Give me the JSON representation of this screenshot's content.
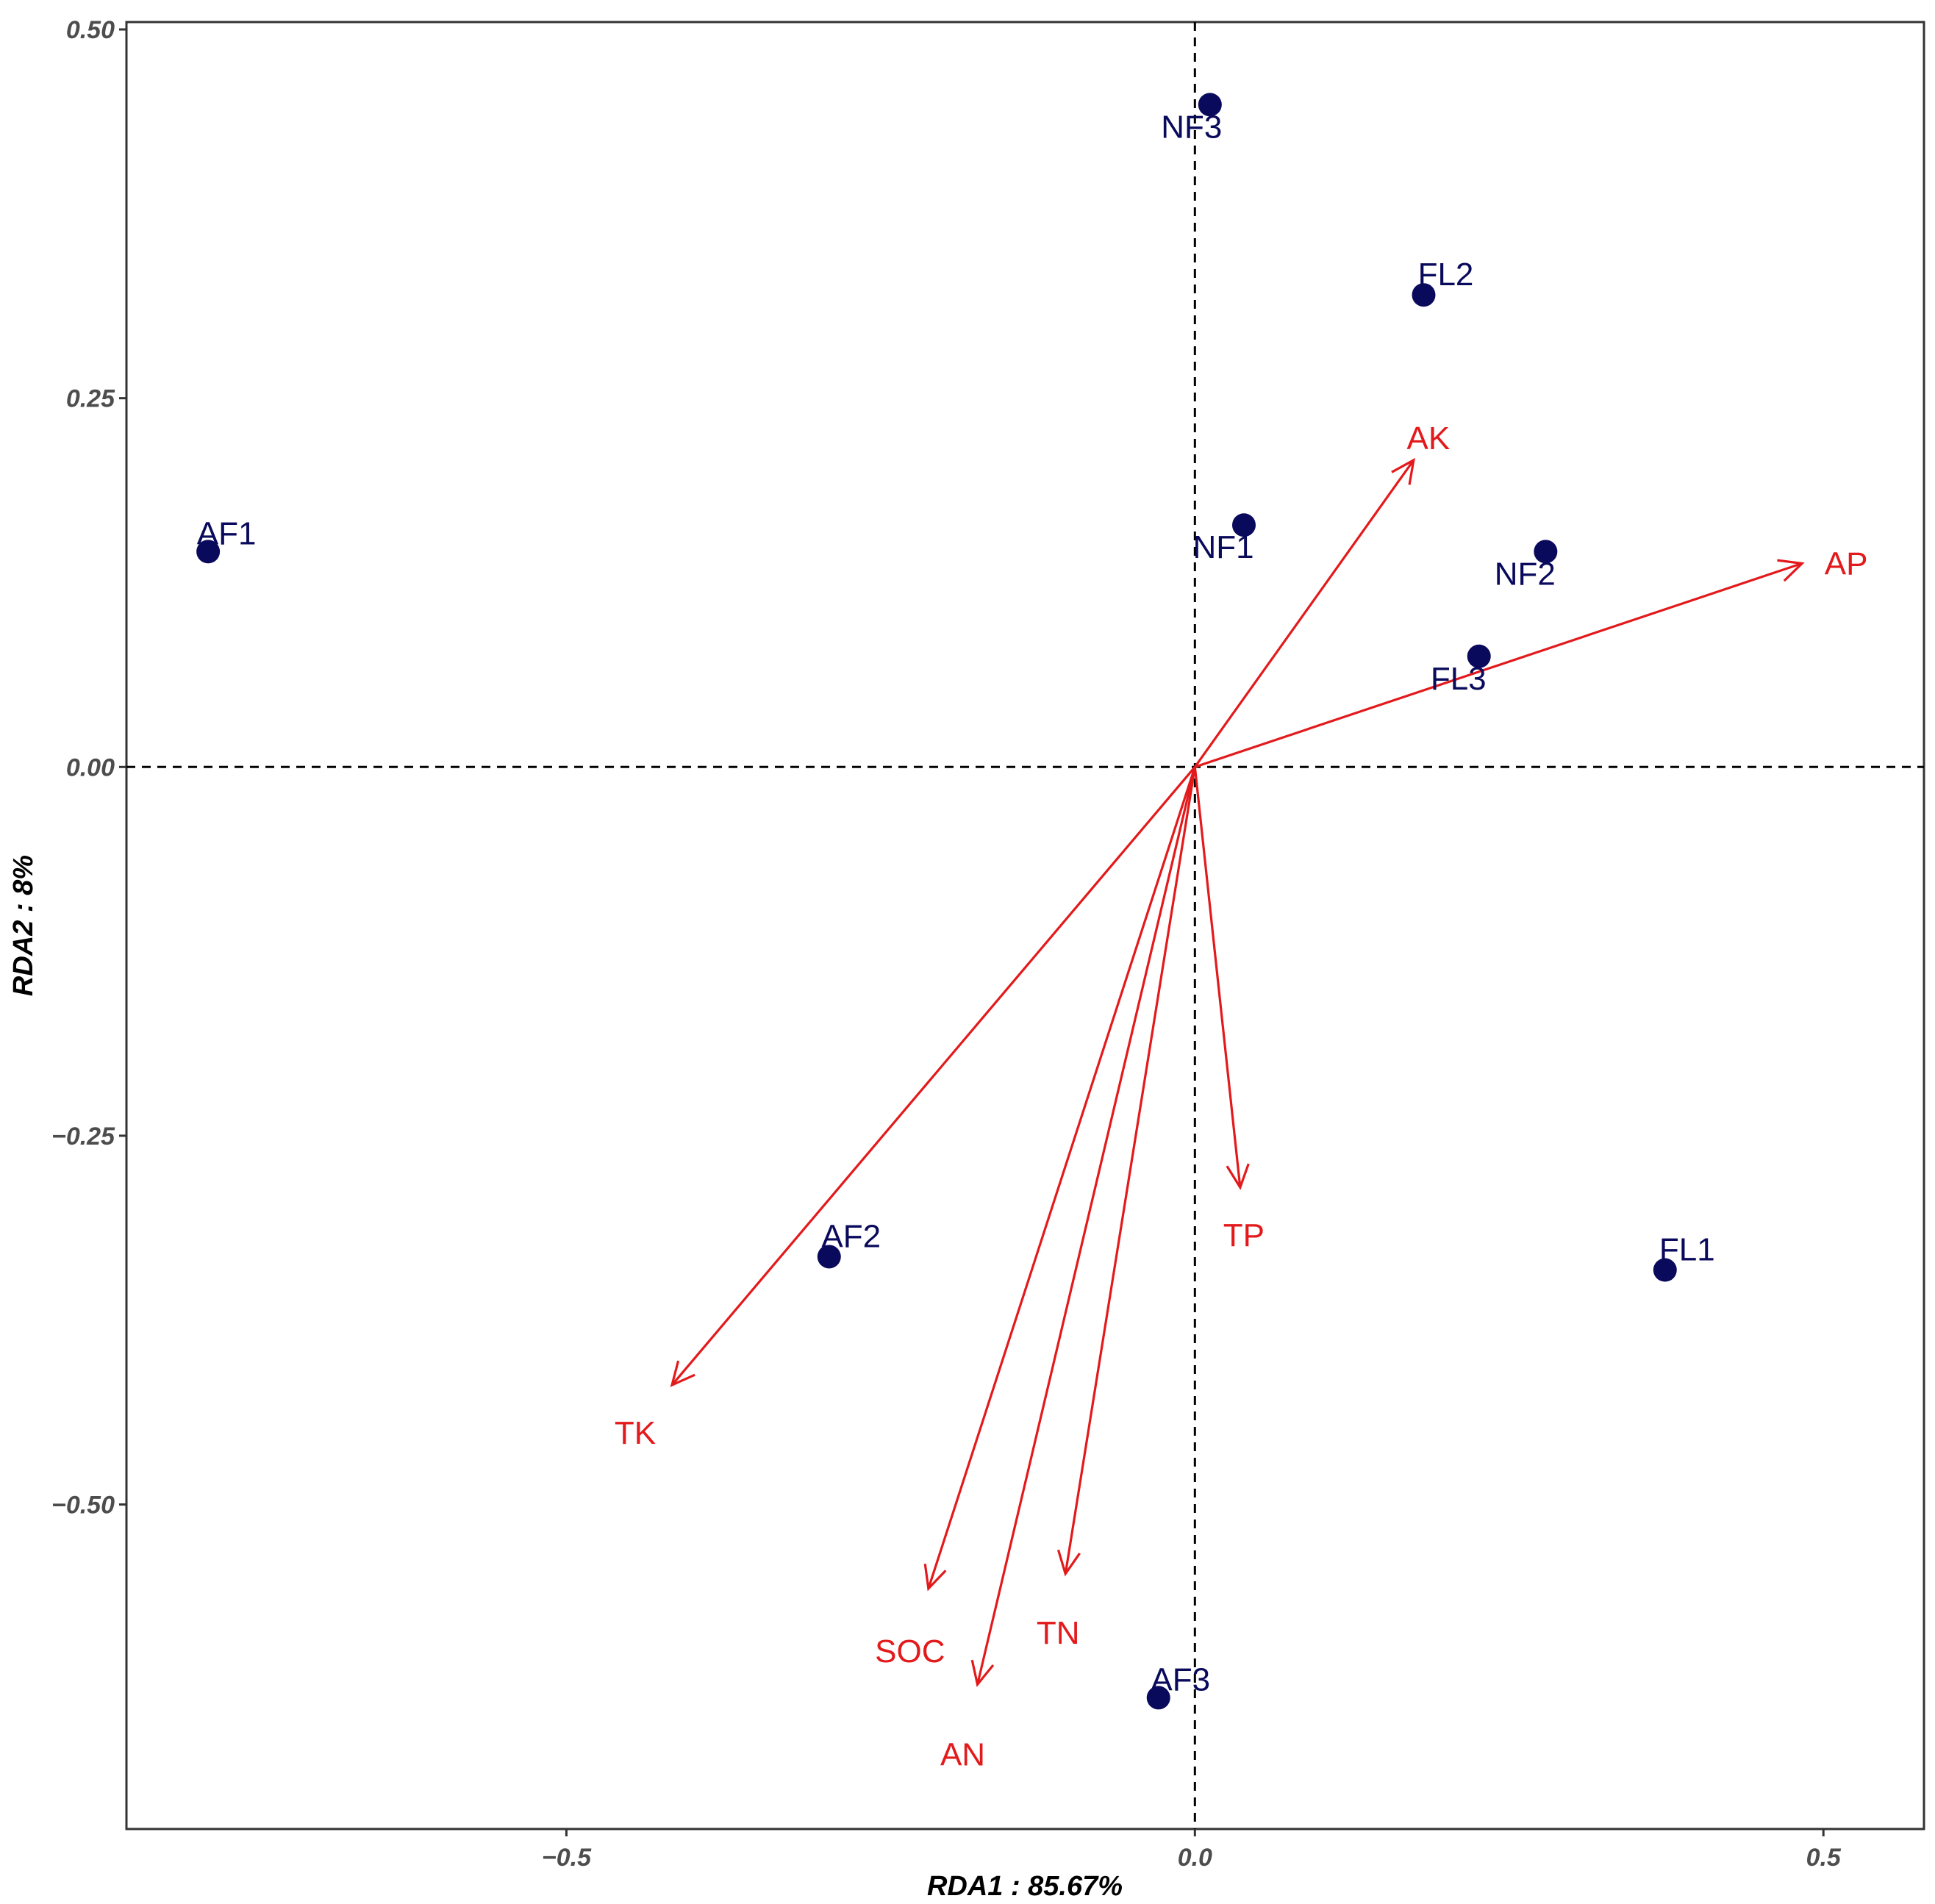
{
  "chart_data": {
    "type": "scatter",
    "subtype": "rda-biplot",
    "title": "",
    "xlabel": "RDA1 : 85.67%",
    "ylabel": "RDA2 : 8%",
    "xlim": [
      -0.85,
      0.58
    ],
    "ylim": [
      -0.72,
      0.505
    ],
    "x_ticks": [
      -0.5,
      0.0,
      0.5
    ],
    "x_tick_labels": [
      "-0.5",
      "0.0",
      "0.5"
    ],
    "y_ticks": [
      -0.5,
      -0.25,
      0.0,
      0.25,
      0.5
    ],
    "y_tick_labels": [
      "-0.50",
      "-0.25",
      "0.00",
      "0.25",
      "0.50"
    ],
    "grid": false,
    "reference_lines": {
      "x": 0,
      "y": 0,
      "style": "dashed"
    },
    "colors": {
      "sites": "#0a0a5c",
      "arrows": "#e31a1c",
      "axes": "#000000",
      "ticks": "#4d4d4d"
    },
    "sites": [
      {
        "label": "AF1",
        "x": -0.785,
        "y": 0.146
      },
      {
        "label": "AF2",
        "x": -0.291,
        "y": -0.332
      },
      {
        "label": "AF3",
        "x": -0.029,
        "y": -0.631
      },
      {
        "label": "NF1",
        "x": 0.039,
        "y": 0.164
      },
      {
        "label": "NF2",
        "x": 0.279,
        "y": 0.146
      },
      {
        "label": "NF3",
        "x": 0.012,
        "y": 0.449
      },
      {
        "label": "FL1",
        "x": 0.374,
        "y": -0.341
      },
      {
        "label": "FL2",
        "x": 0.182,
        "y": 0.32
      },
      {
        "label": "FL3",
        "x": 0.226,
        "y": 0.075
      }
    ],
    "env_vectors": [
      {
        "label": "AK",
        "x": 0.174,
        "y": 0.208
      },
      {
        "label": "AP",
        "x": 0.483,
        "y": 0.138
      },
      {
        "label": "TP",
        "x": 0.036,
        "y": -0.285
      },
      {
        "label": "TK",
        "x": -0.416,
        "y": -0.419
      },
      {
        "label": "SOC",
        "x": -0.212,
        "y": -0.557
      },
      {
        "label": "AN",
        "x": -0.173,
        "y": -0.622
      },
      {
        "label": "TN",
        "x": -0.103,
        "y": -0.547
      }
    ]
  }
}
